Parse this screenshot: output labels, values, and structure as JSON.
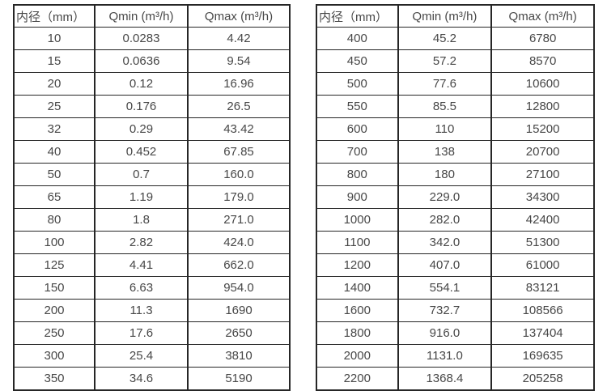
{
  "page": {
    "background_color": "#ffffff",
    "border_color": "#262626",
    "text_color": "#474747"
  },
  "chart_data": [
    {
      "type": "table",
      "title": "",
      "headers": [
        "内径（mm）",
        "Qmin (m³/h)",
        "Qmax (m³/h)"
      ],
      "rows": [
        [
          "10",
          "0.0283",
          "4.42"
        ],
        [
          "15",
          "0.0636",
          "9.54"
        ],
        [
          "20",
          "0.12",
          "16.96"
        ],
        [
          "25",
          "0.176",
          "26.5"
        ],
        [
          "32",
          "0.29",
          "43.42"
        ],
        [
          "40",
          "0.452",
          "67.85"
        ],
        [
          "50",
          "0.7",
          "160.0"
        ],
        [
          "65",
          "1.19",
          "179.0"
        ],
        [
          "80",
          "1.8",
          "271.0"
        ],
        [
          "100",
          "2.82",
          "424.0"
        ],
        [
          "125",
          "4.41",
          "662.0"
        ],
        [
          "150",
          "6.63",
          "954.0"
        ],
        [
          "200",
          "11.3",
          "1690"
        ],
        [
          "250",
          "17.6",
          "2650"
        ],
        [
          "300",
          "25.4",
          "3810"
        ],
        [
          "350",
          "34.6",
          "5190"
        ]
      ]
    },
    {
      "type": "table",
      "title": "",
      "headers": [
        "内径（mm）",
        "Qmin (m³/h)",
        "Qmax (m³/h)"
      ],
      "rows": [
        [
          "400",
          "45.2",
          "6780"
        ],
        [
          "450",
          "57.2",
          "8570"
        ],
        [
          "500",
          "77.6",
          "10600"
        ],
        [
          "550",
          "85.5",
          "12800"
        ],
        [
          "600",
          "110",
          "15200"
        ],
        [
          "700",
          "138",
          "20700"
        ],
        [
          "800",
          "180",
          "27100"
        ],
        [
          "900",
          "229.0",
          "34300"
        ],
        [
          "1000",
          "282.0",
          "42400"
        ],
        [
          "1100",
          "342.0",
          "51300"
        ],
        [
          "1200",
          "407.0",
          "61000"
        ],
        [
          "1400",
          "554.1",
          "83121"
        ],
        [
          "1600",
          "732.7",
          "108566"
        ],
        [
          "1800",
          "916.0",
          "137404"
        ],
        [
          "2000",
          "1131.0",
          "169635"
        ],
        [
          "2200",
          "1368.4",
          "205258"
        ]
      ]
    }
  ]
}
